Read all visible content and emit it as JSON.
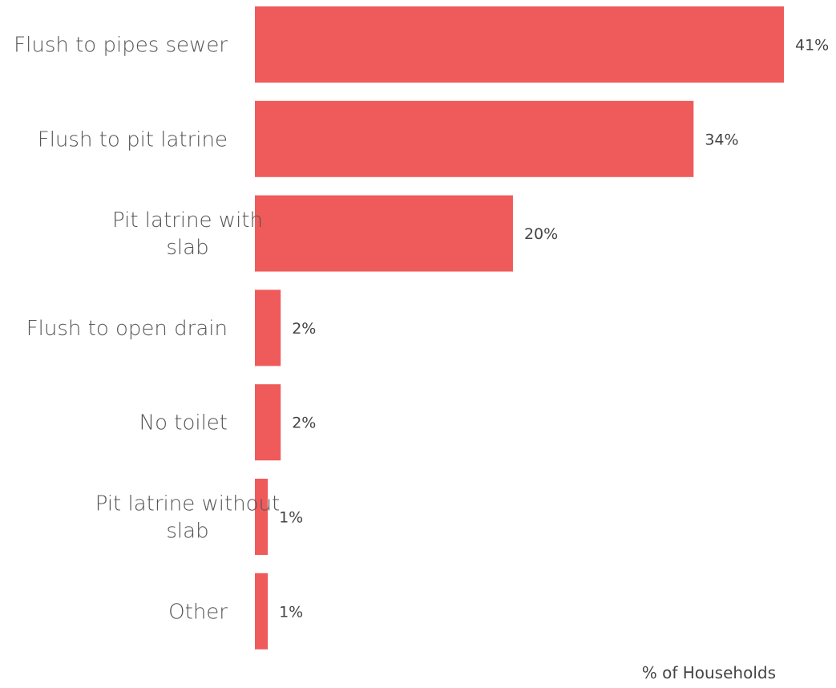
{
  "chart_data": {
    "type": "bar",
    "orientation": "horizontal",
    "categories": [
      "Flush to pipes sewer",
      "Flush to pit latrine",
      "Pit latrine with slab",
      "Flush to open drain",
      "No toilet",
      "Pit latrine without slab",
      "Other"
    ],
    "values": [
      41,
      34,
      20,
      2,
      2,
      1,
      1
    ],
    "value_labels": [
      "41%",
      "34%",
      "20%",
      "2%",
      "2%",
      "1%",
      "1%"
    ],
    "xlabel": "% of Households",
    "ylabel": "",
    "title": "",
    "xlim": [
      0,
      41
    ],
    "grid": false,
    "legend": "none",
    "bar_color": "#ef5a5a"
  }
}
